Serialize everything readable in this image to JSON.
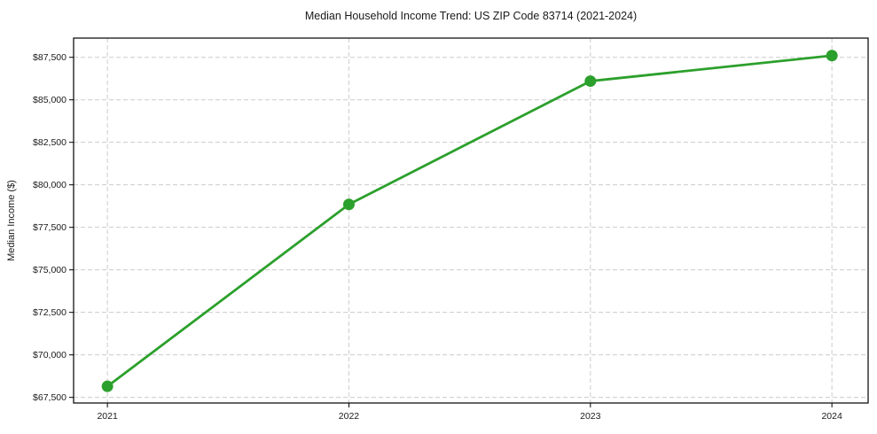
{
  "chart_data": {
    "type": "line",
    "title": "Median Household Income Trend: US ZIP Code 83714 (2021-2024)",
    "xlabel": "",
    "ylabel": "Median Income ($)",
    "x": [
      2021,
      2022,
      2023,
      2024
    ],
    "x_tick_labels": [
      "2021",
      "2022",
      "2023",
      "2024"
    ],
    "series": [
      {
        "name": "Median household income",
        "color": "#2ca02c",
        "values": [
          68150,
          78850,
          86100,
          87600
        ]
      }
    ],
    "y_ticks": [
      67500,
      70000,
      72500,
      75000,
      77500,
      80000,
      82500,
      85000,
      87500
    ],
    "y_tick_labels": [
      "$67,500",
      "$70,000",
      "$72,500",
      "$75,000",
      "$77,500",
      "$80,000",
      "$82,500",
      "$85,000",
      "$87,500"
    ],
    "xlim": [
      2020.86,
      2024.15
    ],
    "ylim": [
      67170,
      88630
    ],
    "grid": true,
    "grid_on": "both",
    "grid_color": "#cccccc",
    "background": "#ffffff",
    "spine_color": "#000000",
    "text_color": "#1a1a1a",
    "legend": "none"
  }
}
